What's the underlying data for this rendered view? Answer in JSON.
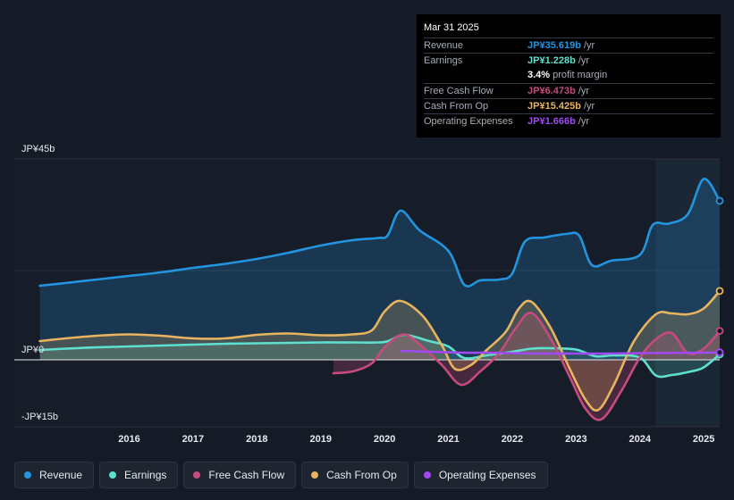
{
  "chart_data": {
    "type": "area",
    "currency_unit": "JP¥ billions",
    "ylim": [
      -15,
      45
    ],
    "y_tick_labels": [
      {
        "value": 45,
        "label": "JP¥45b"
      },
      {
        "value": 0,
        "label": "JP¥0"
      },
      {
        "value": -15,
        "label": "-JP¥15b"
      }
    ],
    "x_ticks": [
      {
        "value": 2016,
        "label": "2016"
      },
      {
        "value": 2017,
        "label": "2017"
      },
      {
        "value": 2018,
        "label": "2018"
      },
      {
        "value": 2019,
        "label": "2019"
      },
      {
        "value": 2020,
        "label": "2020"
      },
      {
        "value": 2021,
        "label": "2021"
      },
      {
        "value": 2022,
        "label": "2022"
      },
      {
        "value": 2023,
        "label": "2023"
      },
      {
        "value": 2024,
        "label": "2024"
      },
      {
        "value": 2025,
        "label": "2025"
      }
    ],
    "xlim": [
      2014.2,
      2025.25
    ],
    "highlight_start": 2024.25,
    "series": [
      {
        "name": "Revenue",
        "color": "#2394df",
        "fill": true,
        "points": [
          [
            2014.6,
            16.6
          ],
          [
            2015,
            17.2
          ],
          [
            2015.5,
            18
          ],
          [
            2016,
            18.8
          ],
          [
            2016.5,
            19.6
          ],
          [
            2017,
            20.6
          ],
          [
            2017.5,
            21.5
          ],
          [
            2018,
            22.6
          ],
          [
            2018.5,
            24
          ],
          [
            2019,
            25.6
          ],
          [
            2019.5,
            26.8
          ],
          [
            2019.9,
            27.3
          ],
          [
            2020.05,
            27.9
          ],
          [
            2020.25,
            33.4
          ],
          [
            2020.55,
            29
          ],
          [
            2021,
            24.4
          ],
          [
            2021.25,
            16.8
          ],
          [
            2021.5,
            17.8
          ],
          [
            2021.8,
            18.0
          ],
          [
            2022.0,
            19.3
          ],
          [
            2022.2,
            26.5
          ],
          [
            2022.5,
            27.4
          ],
          [
            2022.85,
            28.2
          ],
          [
            2023.05,
            27.8
          ],
          [
            2023.25,
            21.2
          ],
          [
            2023.55,
            22.2
          ],
          [
            2024.0,
            23.5
          ],
          [
            2024.2,
            30.2
          ],
          [
            2024.45,
            30.5
          ],
          [
            2024.75,
            32.6
          ],
          [
            2025.0,
            40.5
          ],
          [
            2025.25,
            35.619
          ]
        ]
      },
      {
        "name": "Earnings",
        "color": "#5fe0cf",
        "fill": true,
        "points": [
          [
            2014.6,
            2.2
          ],
          [
            2015,
            2.5
          ],
          [
            2015.5,
            2.8
          ],
          [
            2016,
            3.0
          ],
          [
            2016.5,
            3.2
          ],
          [
            2017,
            3.4
          ],
          [
            2017.5,
            3.6
          ],
          [
            2018,
            3.7
          ],
          [
            2018.5,
            3.8
          ],
          [
            2019,
            3.9
          ],
          [
            2019.5,
            3.9
          ],
          [
            2020,
            4.0
          ],
          [
            2020.3,
            5.6
          ],
          [
            2020.7,
            4.2
          ],
          [
            2021,
            3.0
          ],
          [
            2021.25,
            0.4
          ],
          [
            2021.6,
            1.0
          ],
          [
            2022,
            1.8
          ],
          [
            2022.3,
            2.5
          ],
          [
            2022.6,
            2.6
          ],
          [
            2023,
            2.3
          ],
          [
            2023.3,
            0.8
          ],
          [
            2023.6,
            1.0
          ],
          [
            2024.0,
            0.5
          ],
          [
            2024.25,
            -3.5
          ],
          [
            2024.5,
            -3.4
          ],
          [
            2024.8,
            -2.6
          ],
          [
            2025.0,
            -1.7
          ],
          [
            2025.25,
            1.228
          ]
        ]
      },
      {
        "name": "Free Cash Flow",
        "color": "#c74a7e",
        "fill": true,
        "points": [
          [
            2019.2,
            -3.0
          ],
          [
            2019.5,
            -2.6
          ],
          [
            2019.8,
            -0.8
          ],
          [
            2020.0,
            2.8
          ],
          [
            2020.3,
            5.7
          ],
          [
            2020.6,
            2.8
          ],
          [
            2020.9,
            -1.2
          ],
          [
            2021.2,
            -5.6
          ],
          [
            2021.5,
            -2.6
          ],
          [
            2021.8,
            1.6
          ],
          [
            2022.05,
            7.0
          ],
          [
            2022.3,
            10.5
          ],
          [
            2022.6,
            4.8
          ],
          [
            2022.9,
            -3.8
          ],
          [
            2023.15,
            -11.0
          ],
          [
            2023.4,
            -13.3
          ],
          [
            2023.7,
            -7.2
          ],
          [
            2024.0,
            0.5
          ],
          [
            2024.25,
            4.6
          ],
          [
            2024.5,
            6.0
          ],
          [
            2024.75,
            1.5
          ],
          [
            2025.0,
            2.5
          ],
          [
            2025.25,
            6.473
          ]
        ]
      },
      {
        "name": "Cash From Op",
        "color": "#e8b45f",
        "fill": true,
        "points": [
          [
            2014.6,
            4.2
          ],
          [
            2015,
            4.8
          ],
          [
            2015.5,
            5.4
          ],
          [
            2016,
            5.7
          ],
          [
            2016.5,
            5.4
          ],
          [
            2017,
            4.8
          ],
          [
            2017.5,
            4.8
          ],
          [
            2018,
            5.6
          ],
          [
            2018.5,
            5.9
          ],
          [
            2019,
            5.5
          ],
          [
            2019.5,
            5.7
          ],
          [
            2019.8,
            6.6
          ],
          [
            2020.0,
            10.8
          ],
          [
            2020.25,
            13.2
          ],
          [
            2020.6,
            9.8
          ],
          [
            2020.9,
            3.2
          ],
          [
            2021.1,
            -2.0
          ],
          [
            2021.35,
            -1.2
          ],
          [
            2021.6,
            2.2
          ],
          [
            2021.9,
            6.3
          ],
          [
            2022.1,
            11.4
          ],
          [
            2022.3,
            13.0
          ],
          [
            2022.6,
            7.2
          ],
          [
            2022.9,
            -2.0
          ],
          [
            2023.15,
            -9.0
          ],
          [
            2023.35,
            -11.2
          ],
          [
            2023.6,
            -5.4
          ],
          [
            2023.9,
            4.0
          ],
          [
            2024.25,
            10.2
          ],
          [
            2024.5,
            10.4
          ],
          [
            2024.75,
            10.2
          ],
          [
            2025.0,
            11.5
          ],
          [
            2025.25,
            15.425
          ]
        ]
      },
      {
        "name": "Operating Expenses",
        "color": "#a049f0",
        "fill": false,
        "points": [
          [
            2020.25,
            2.0
          ],
          [
            2020.7,
            1.8
          ],
          [
            2021.2,
            1.6
          ],
          [
            2021.6,
            1.6
          ],
          [
            2022.0,
            1.5
          ],
          [
            2022.5,
            1.4
          ],
          [
            2023.0,
            1.4
          ],
          [
            2023.5,
            1.4
          ],
          [
            2024.0,
            1.5
          ],
          [
            2024.5,
            1.55
          ],
          [
            2025.0,
            1.6
          ],
          [
            2025.25,
            1.666
          ]
        ]
      }
    ]
  },
  "tooltip": {
    "date": "Mar 31 2025",
    "rows": [
      {
        "label": "Revenue",
        "value": "JP¥35.619b",
        "unit": "/yr",
        "color": "#2394df"
      },
      {
        "label": "Earnings",
        "value": "JP¥1.228b",
        "unit": "/yr",
        "color": "#5fe0cf"
      },
      {
        "label": "",
        "value": "3.4%",
        "unit": "profit margin",
        "color": "#ffffff"
      },
      {
        "label": "Free Cash Flow",
        "value": "JP¥6.473b",
        "unit": "/yr",
        "color": "#c74a7e"
      },
      {
        "label": "Cash From Op",
        "value": "JP¥15.425b",
        "unit": "/yr",
        "color": "#e8b45f"
      },
      {
        "label": "Operating Expenses",
        "value": "JP¥1.666b",
        "unit": "/yr",
        "color": "#a049f0"
      }
    ]
  },
  "legend": [
    {
      "label": "Revenue",
      "color": "#2394df"
    },
    {
      "label": "Earnings",
      "color": "#5fe0cf"
    },
    {
      "label": "Free Cash Flow",
      "color": "#c74a7e"
    },
    {
      "label": "Cash From Op",
      "color": "#e8b45f"
    },
    {
      "label": "Operating Expenses",
      "color": "#a049f0"
    }
  ]
}
